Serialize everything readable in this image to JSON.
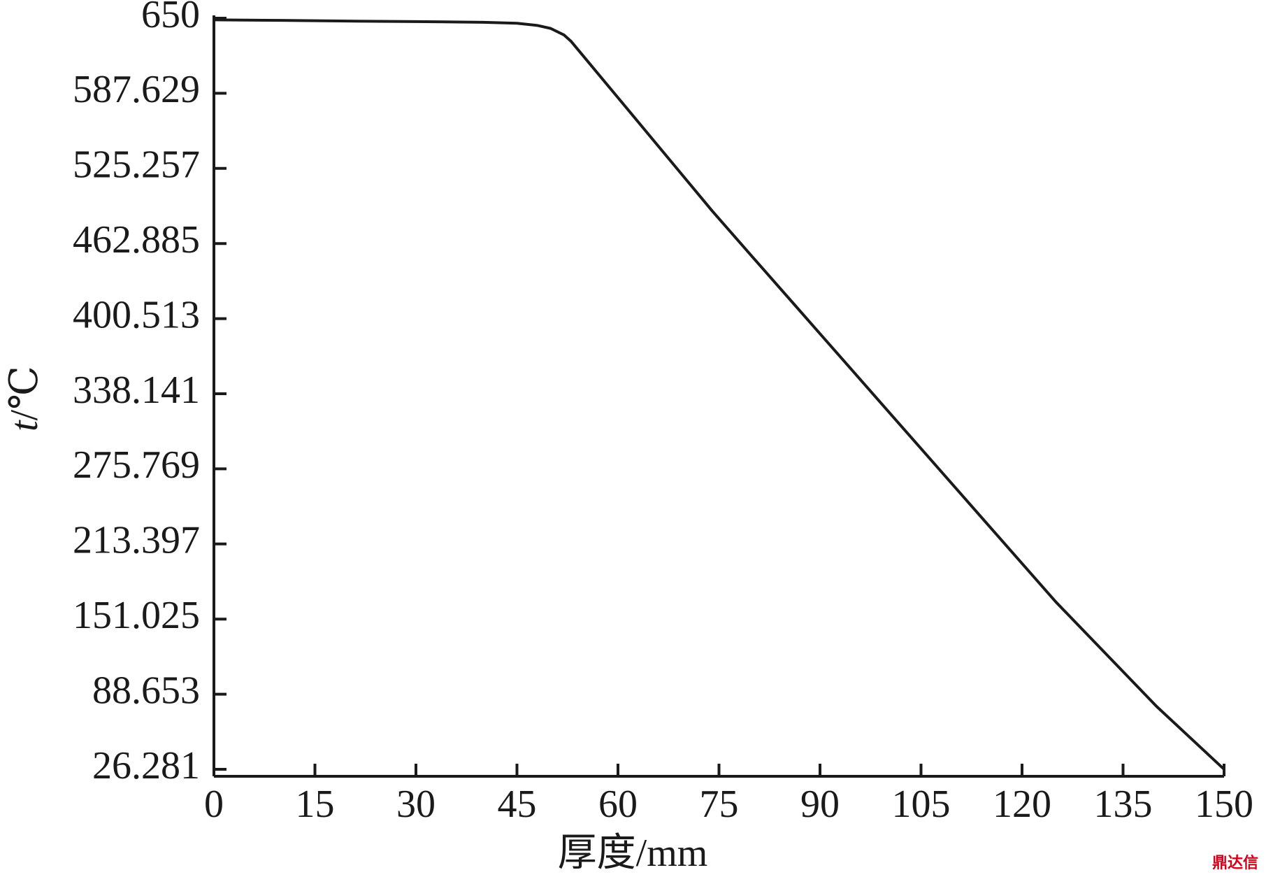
{
  "chart_data": {
    "type": "line",
    "xlabel": "厚度/mm",
    "ylabel": {
      "italic": "t",
      "rest": "/℃"
    },
    "watermark": "鼎达信",
    "x": [
      0,
      10,
      20,
      30,
      40,
      45,
      48,
      50,
      52,
      53,
      60,
      70,
      74,
      80,
      90,
      100,
      110,
      120,
      125,
      130,
      140,
      150
    ],
    "series": [
      {
        "color": "#1a1a1a",
        "values": [
          648.6,
          648.2,
          647.6,
          647.2,
          646.6,
          645.8,
          644,
          641.5,
          636,
          631,
          584,
          516.8,
          489.9,
          451.6,
          388,
          324.4,
          260.8,
          197.2,
          165.4,
          136.4,
          78.4,
          26.3
        ]
      }
    ],
    "xlim": [
      0,
      150
    ],
    "xticks": [
      0,
      15,
      30,
      45,
      60,
      75,
      90,
      105,
      120,
      135,
      150
    ],
    "ylim": [
      26.281,
      650
    ],
    "yticks": [
      26.281,
      88.653,
      151.025,
      213.397,
      275.769,
      338.141,
      400.513,
      462.885,
      525.257,
      587.629,
      650
    ]
  }
}
